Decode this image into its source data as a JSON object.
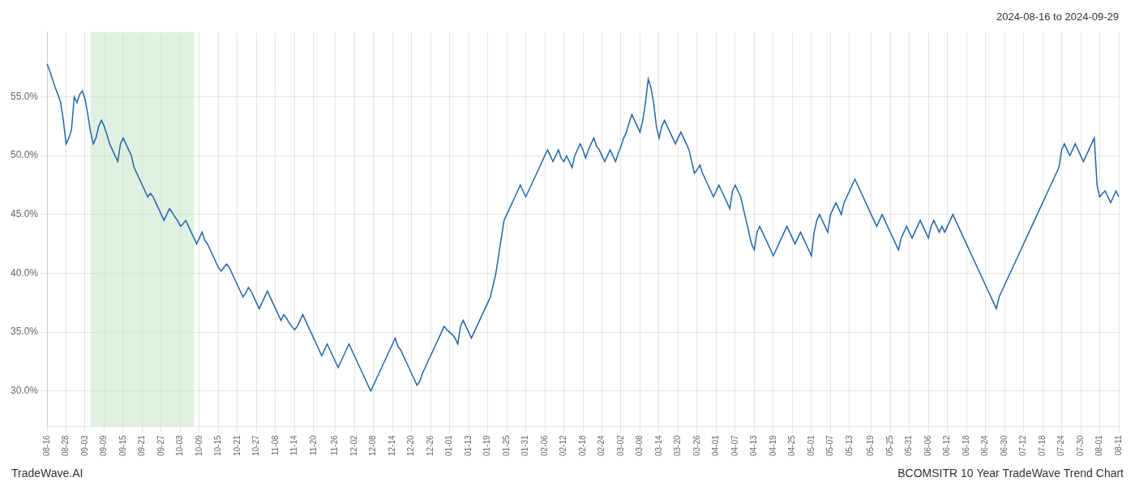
{
  "chart_data": {
    "type": "line",
    "title": "2024-08-16 to 2024-09-29",
    "annotations": [
      "TradeWave.AI",
      "BCOMSITR 10 Year TradeWave Trend Chart"
    ],
    "color": "#2166ac",
    "grid": true,
    "ylim": [
      27.0,
      60.5
    ],
    "yticks": [
      {
        "value": 30.0,
        "label": "30.0%"
      },
      {
        "value": 35.0,
        "label": "35.0%"
      },
      {
        "value": 40.0,
        "label": "40.0%"
      },
      {
        "value": 45.0,
        "label": "45.0%"
      },
      {
        "value": 50.0,
        "label": "50.0%"
      },
      {
        "value": 55.0,
        "label": "55.0%"
      }
    ],
    "highlight": {
      "start": 16,
      "end": 54,
      "color": "#c8e6c9"
    },
    "categories": [
      "08-16",
      null,
      null,
      null,
      null,
      null,
      null,
      "08-28",
      null,
      null,
      null,
      null,
      null,
      null,
      "09-03",
      null,
      null,
      null,
      null,
      null,
      null,
      "09-09",
      null,
      null,
      null,
      null,
      null,
      null,
      "09-15",
      null,
      null,
      null,
      null,
      null,
      null,
      "09-21",
      null,
      null,
      null,
      null,
      null,
      null,
      "09-27",
      null,
      null,
      null,
      null,
      null,
      null,
      "10-03",
      null,
      null,
      null,
      null,
      null,
      null,
      "10-09",
      null,
      null,
      null,
      null,
      null,
      null,
      "10-15",
      null,
      null,
      null,
      null,
      null,
      null,
      "10-21",
      null,
      null,
      null,
      null,
      null,
      null,
      "10-27",
      null,
      null,
      null,
      null,
      null,
      null,
      "11-08",
      null,
      null,
      null,
      null,
      null,
      null,
      "11-14",
      null,
      null,
      null,
      null,
      null,
      null,
      "11-20",
      null,
      null,
      null,
      null,
      null,
      null,
      null,
      "11-26",
      null,
      null,
      null,
      null,
      null,
      null,
      "12-02",
      null,
      null,
      null,
      null,
      null,
      null,
      "12-08",
      null,
      null,
      null,
      null,
      null,
      null,
      "12-14",
      null,
      null,
      null,
      null,
      null,
      null,
      "12-20",
      null,
      null,
      null,
      null,
      null,
      null,
      "12-26",
      null,
      null,
      null,
      null,
      null,
      null,
      "01-01",
      null,
      null,
      null,
      null,
      null,
      null,
      "01-13",
      null,
      null,
      null,
      null,
      null,
      null,
      "01-19",
      null,
      null,
      null,
      null,
      null,
      null,
      "01-25",
      null,
      null,
      null,
      null,
      null,
      null,
      "01-31",
      null,
      null,
      null,
      null,
      null,
      null,
      "02-06",
      null,
      null,
      null,
      null,
      null,
      null,
      "02-12",
      null,
      null,
      null,
      null,
      null,
      null,
      "02-18",
      null,
      null,
      null,
      null,
      null,
      null,
      "02-24",
      null,
      null,
      null,
      null,
      null,
      null,
      "03-02",
      null,
      null,
      null,
      null,
      null,
      null,
      "03-08",
      null,
      null,
      null,
      null,
      null,
      null,
      "03-14",
      null,
      null,
      null,
      null,
      null,
      null,
      "03-20",
      null,
      null,
      null,
      null,
      null,
      null,
      "03-26",
      null,
      null,
      null,
      null,
      null,
      null,
      "04-01",
      null,
      null,
      null,
      null,
      null,
      null,
      "04-07",
      null,
      null,
      null,
      null,
      null,
      null,
      "04-13",
      null,
      null,
      null,
      null,
      null,
      null,
      "04-19",
      null,
      null,
      null,
      null,
      null,
      null,
      "04-25",
      null,
      null,
      null,
      null,
      null,
      null,
      "05-01",
      null,
      null,
      null,
      null,
      null,
      null,
      "05-07",
      null,
      null,
      null,
      null,
      null,
      null,
      "05-13",
      null,
      null,
      null,
      null,
      null,
      null,
      null,
      "05-19",
      null,
      null,
      null,
      null,
      null,
      null,
      "05-25",
      null,
      null,
      null,
      null,
      null,
      null,
      "05-31",
      null,
      null,
      null,
      null,
      null,
      null,
      "06-06",
      null,
      null,
      null,
      null,
      null,
      null,
      "06-12",
      null,
      null,
      null,
      null,
      null,
      null,
      "06-18",
      null,
      null,
      null,
      null,
      null,
      null,
      "06-24",
      null,
      null,
      null,
      null,
      null,
      null,
      "06-30",
      null,
      null,
      null,
      null,
      null,
      null,
      "07-12",
      null,
      null,
      null,
      null,
      null,
      null,
      "07-18",
      null,
      null,
      null,
      null,
      null,
      null,
      "07-24",
      null,
      null,
      null,
      null,
      null,
      null,
      "07-30",
      null,
      null,
      null,
      null,
      null,
      null,
      "08-01",
      null,
      null,
      null,
      null,
      null,
      null,
      "08-11"
    ],
    "values": [
      57.8,
      57.2,
      56.5,
      55.8,
      55.2,
      54.5,
      53.0,
      51.0,
      51.5,
      52.2,
      55.0,
      54.5,
      55.2,
      55.5,
      54.8,
      53.5,
      52.0,
      51.0,
      51.5,
      52.5,
      53.0,
      52.5,
      51.8,
      51.0,
      50.5,
      50.0,
      49.5,
      51.0,
      51.5,
      51.0,
      50.5,
      50.0,
      49.0,
      48.5,
      48.0,
      47.5,
      47.0,
      46.5,
      46.8,
      46.5,
      46.0,
      45.5,
      45.0,
      44.5,
      45.0,
      45.5,
      45.2,
      44.8,
      44.5,
      44.0,
      44.2,
      44.5,
      44.0,
      43.5,
      43.0,
      42.5,
      43.0,
      43.5,
      42.8,
      42.5,
      42.0,
      41.5,
      41.0,
      40.5,
      40.2,
      40.5,
      40.8,
      40.5,
      40.0,
      39.5,
      39.0,
      38.5,
      38.0,
      38.3,
      38.8,
      38.5,
      38.0,
      37.5,
      37.0,
      37.5,
      38.0,
      38.5,
      38.0,
      37.5,
      37.0,
      36.5,
      36.0,
      36.5,
      36.2,
      35.8,
      35.5,
      35.2,
      35.5,
      36.0,
      36.5,
      36.0,
      35.5,
      35.0,
      34.5,
      34.0,
      33.5,
      33.0,
      33.5,
      34.0,
      33.5,
      33.0,
      32.5,
      32.0,
      32.5,
      33.0,
      33.5,
      34.0,
      33.5,
      33.0,
      32.5,
      32.0,
      31.5,
      31.0,
      30.5,
      30.0,
      30.5,
      31.0,
      31.5,
      32.0,
      32.5,
      33.0,
      33.5,
      34.0,
      34.5,
      33.8,
      33.5,
      33.0,
      32.5,
      32.0,
      31.5,
      31.0,
      30.5,
      30.8,
      31.5,
      32.0,
      32.5,
      33.0,
      33.5,
      34.0,
      34.5,
      35.0,
      35.5,
      35.2,
      35.0,
      34.8,
      34.5,
      34.0,
      35.5,
      36.0,
      35.5,
      35.0,
      34.5,
      35.0,
      35.5,
      36.0,
      36.5,
      37.0,
      37.5,
      38.0,
      39.0,
      40.0,
      41.5,
      43.0,
      44.5,
      45.0,
      45.5,
      46.0,
      46.5,
      47.0,
      47.5,
      47.0,
      46.5,
      47.0,
      47.5,
      48.0,
      48.5,
      49.0,
      49.5,
      50.0,
      50.5,
      50.0,
      49.5,
      50.0,
      50.5,
      49.8,
      49.5,
      50.0,
      49.5,
      49.0,
      50.0,
      50.5,
      51.0,
      50.5,
      49.8,
      50.5,
      51.0,
      51.5,
      50.8,
      50.5,
      50.0,
      49.5,
      50.0,
      50.5,
      50.0,
      49.5,
      50.2,
      50.8,
      51.5,
      52.0,
      52.8,
      53.5,
      53.0,
      52.5,
      52.0,
      53.0,
      54.5,
      56.5,
      55.8,
      54.5,
      52.5,
      51.5,
      52.5,
      53.0,
      52.5,
      52.0,
      51.5,
      51.0,
      51.5,
      52.0,
      51.5,
      51.0,
      50.5,
      49.5,
      48.5,
      48.8,
      49.2,
      48.5,
      48.0,
      47.5,
      47.0,
      46.5,
      47.0,
      47.5,
      47.0,
      46.5,
      46.0,
      45.5,
      47.0,
      47.5,
      47.0,
      46.5,
      45.5,
      44.5,
      43.5,
      42.5,
      42.0,
      43.5,
      44.0,
      43.5,
      43.0,
      42.5,
      42.0,
      41.5,
      42.0,
      42.5,
      43.0,
      43.5,
      44.0,
      43.5,
      43.0,
      42.5,
      43.0,
      43.5,
      43.0,
      42.5,
      42.0,
      41.5,
      43.5,
      44.5,
      45.0,
      44.5,
      44.0,
      43.5,
      45.0,
      45.5,
      46.0,
      45.5,
      45.0,
      46.0,
      46.5,
      47.0,
      47.5,
      48.0,
      47.5,
      47.0,
      46.5,
      46.0,
      45.5,
      45.0,
      44.5,
      44.0,
      44.5,
      45.0,
      44.5,
      44.0,
      43.5,
      43.0,
      42.5,
      42.0,
      43.0,
      43.5,
      44.0,
      43.5,
      43.0,
      43.5,
      44.0,
      44.5,
      44.0,
      43.5,
      43.0,
      44.0,
      44.5,
      44.0,
      43.5,
      44.0,
      43.5,
      44.0,
      44.5,
      45.0,
      44.5,
      44.0,
      43.5,
      43.0,
      42.5,
      42.0,
      41.5,
      41.0,
      40.5,
      40.0,
      39.5,
      39.0,
      38.5,
      38.0,
      37.5,
      37.0,
      38.0,
      38.5,
      39.0,
      39.5,
      40.0,
      40.5,
      41.0,
      41.5,
      42.0,
      42.5,
      43.0,
      43.5,
      44.0,
      44.5,
      45.0,
      45.5,
      46.0,
      46.5,
      47.0,
      47.5,
      48.0,
      48.5,
      49.0,
      50.5,
      51.0,
      50.5,
      50.0,
      50.5,
      51.0,
      50.5,
      50.0,
      49.5,
      50.0,
      50.5,
      51.0,
      51.5,
      47.5,
      46.5,
      46.8,
      47.0,
      46.5,
      46.0,
      46.5,
      47.0,
      46.5
    ]
  }
}
